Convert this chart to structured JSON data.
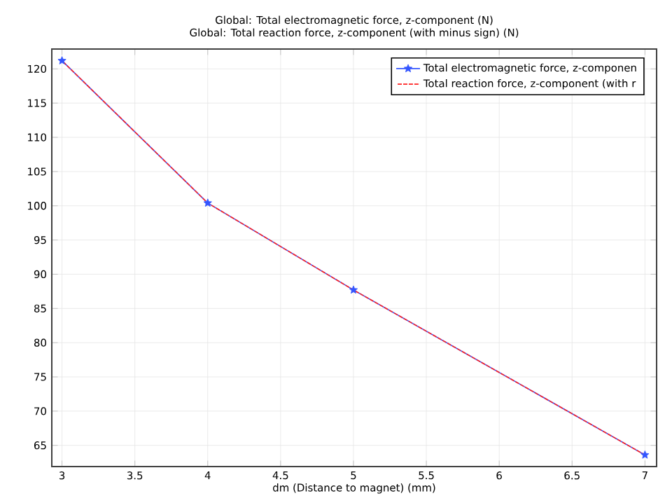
{
  "chart_data": {
    "type": "line",
    "title": "Global: Total electromagnetic force, z-component (N)",
    "subtitle": "Global: Total reaction force, z-component (with minus sign) (N)",
    "xlabel": "dm (Distance to magnet) (mm)",
    "x": [
      3,
      4,
      5,
      7
    ],
    "series": [
      {
        "name": "Total electromagnetic force, z-componen",
        "color": "#3355ff",
        "values": [
          121.2,
          100.4,
          87.7,
          63.6
        ],
        "marker": "star",
        "line_style": "solid"
      },
      {
        "name": "Total reaction force, z-component (with r",
        "color": "#ff2222",
        "values": [
          121.2,
          100.4,
          87.7,
          63.6
        ],
        "marker": "none",
        "line_style": "dashed"
      }
    ],
    "xlim": [
      2.93,
      7.08
    ],
    "ylim": [
      61.9,
      122.9
    ],
    "xticks": [
      3,
      3.5,
      4,
      4.5,
      5,
      5.5,
      6,
      6.5,
      7
    ],
    "yticks": [
      65,
      70,
      75,
      80,
      85,
      90,
      95,
      100,
      105,
      110,
      115,
      120
    ],
    "grid": true,
    "legend": "top right"
  }
}
